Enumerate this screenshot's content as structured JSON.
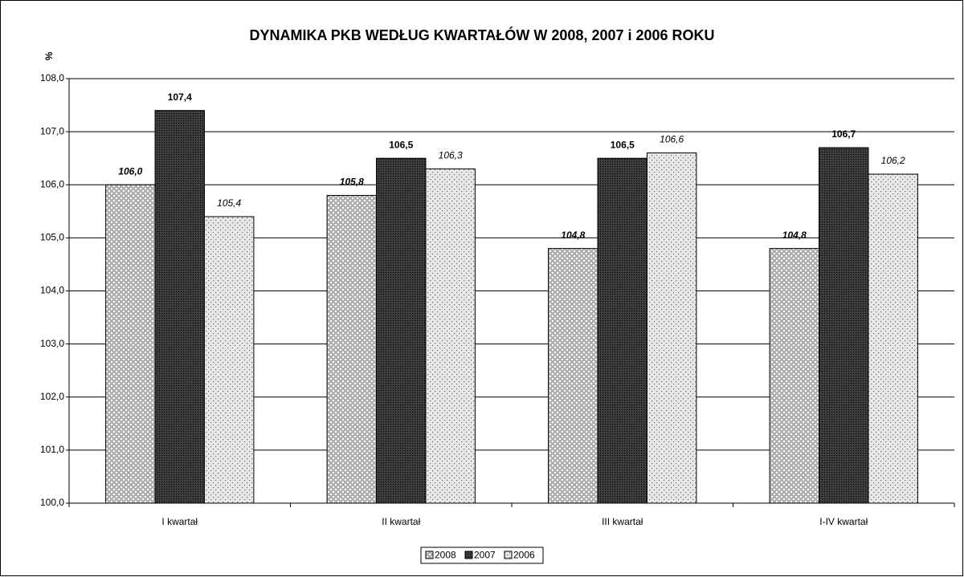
{
  "chart_data": {
    "type": "bar",
    "title": "DYNAMIKA  PKB  WEDŁUG  KWARTAŁÓW   W  2008, 2007 i 2006 ROKU",
    "y_label": "%",
    "categories": [
      "I kwartał",
      "II kwartał",
      "III kwartał",
      "I-IV kwartał"
    ],
    "series": [
      {
        "name": "2008",
        "color": "#b0b0b0",
        "values": [
          106.0,
          105.8,
          104.8,
          104.8
        ],
        "value_labels": [
          "106,0",
          "105,8",
          "104,8",
          "104,8"
        ]
      },
      {
        "name": "2007",
        "color": "#404040",
        "values": [
          107.4,
          106.5,
          106.5,
          106.7
        ],
        "value_labels": [
          "107,4",
          "106,5",
          "106,5",
          "106,7"
        ]
      },
      {
        "name": "2006",
        "color": "#e8e8e8",
        "values": [
          105.4,
          106.3,
          106.6,
          106.2
        ],
        "value_labels": [
          "105,4",
          "106,3",
          "106,6",
          "106,2"
        ]
      }
    ],
    "ylim": [
      100,
      108
    ],
    "yticks": [
      {
        "value": 100,
        "label": "100,0"
      },
      {
        "value": 101,
        "label": "101,0"
      },
      {
        "value": 102,
        "label": "102,0"
      },
      {
        "value": 103,
        "label": "103,0"
      },
      {
        "value": 104,
        "label": "104,0"
      },
      {
        "value": 105,
        "label": "105,0"
      },
      {
        "value": 106,
        "label": "106,0"
      },
      {
        "value": 107,
        "label": "107,0"
      },
      {
        "value": 108,
        "label": "108,0"
      }
    ],
    "grid": true,
    "legend": "bottom"
  }
}
